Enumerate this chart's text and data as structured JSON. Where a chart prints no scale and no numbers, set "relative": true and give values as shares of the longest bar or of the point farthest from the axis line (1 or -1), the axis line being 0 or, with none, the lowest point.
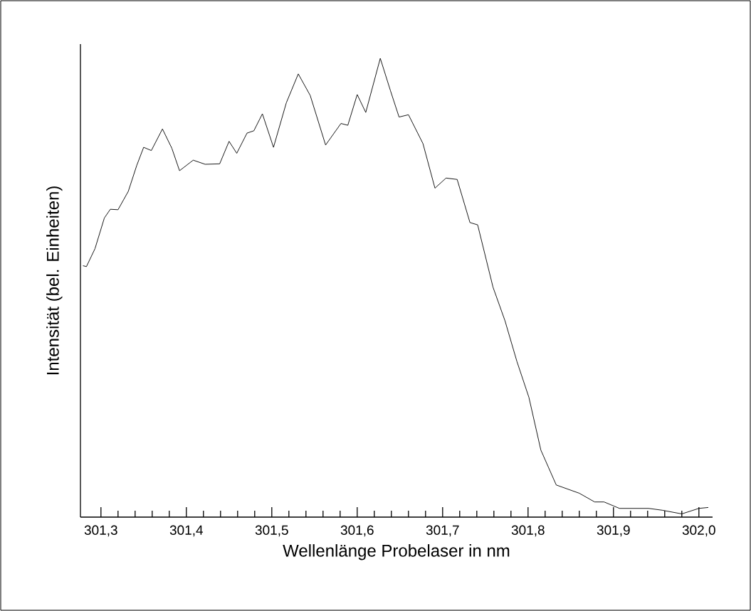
{
  "chart_data": {
    "type": "line",
    "relative": true,
    "xlabel": "Wellenlänge Probelaser in nm",
    "ylabel": "Intensität (bel. Einheiten)",
    "xlim": [
      301.276,
      302.016
    ],
    "xticks": [
      {
        "value": 301.3,
        "label": "301,3"
      },
      {
        "value": 301.4,
        "label": "301,4"
      },
      {
        "value": 301.5,
        "label": "301,5"
      },
      {
        "value": 301.6,
        "label": "301,6"
      },
      {
        "value": 301.7,
        "label": "301,7"
      },
      {
        "value": 301.8,
        "label": "301,8"
      },
      {
        "value": 301.9,
        "label": "301,9"
      },
      {
        "value": 302.0,
        "label": "302,0"
      }
    ],
    "x": [
      301.279,
      301.283,
      301.293,
      301.304,
      301.311,
      301.32,
      301.332,
      301.342,
      301.35,
      301.359,
      301.372,
      301.383,
      301.392,
      301.408,
      301.422,
      301.439,
      301.45,
      301.459,
      301.471,
      301.479,
      301.489,
      301.502,
      301.517,
      301.531,
      301.545,
      301.563,
      301.581,
      301.589,
      301.6,
      301.61,
      301.627,
      301.639,
      301.649,
      301.66,
      301.677,
      301.691,
      301.704,
      301.717,
      301.732,
      301.741,
      301.759,
      301.773,
      301.787,
      301.801,
      301.815,
      301.833,
      301.86,
      301.878,
      301.889,
      301.907,
      301.941,
      301.957,
      301.98,
      302.0,
      302.011
    ],
    "values": [
      0.548,
      0.546,
      0.585,
      0.652,
      0.671,
      0.67,
      0.71,
      0.767,
      0.806,
      0.799,
      0.846,
      0.804,
      0.755,
      0.778,
      0.769,
      0.77,
      0.819,
      0.793,
      0.837,
      0.842,
      0.879,
      0.806,
      0.903,
      0.966,
      0.919,
      0.811,
      0.858,
      0.854,
      0.921,
      0.882,
      1.0,
      0.929,
      0.872,
      0.877,
      0.814,
      0.717,
      0.739,
      0.736,
      0.642,
      0.637,
      0.501,
      0.428,
      0.339,
      0.261,
      0.146,
      0.07,
      0.052,
      0.033,
      0.033,
      0.019,
      0.019,
      0.015,
      0.007,
      0.019,
      0.021
    ],
    "color": "#000000",
    "marker": "none",
    "line_style": "solid",
    "grid": false
  }
}
